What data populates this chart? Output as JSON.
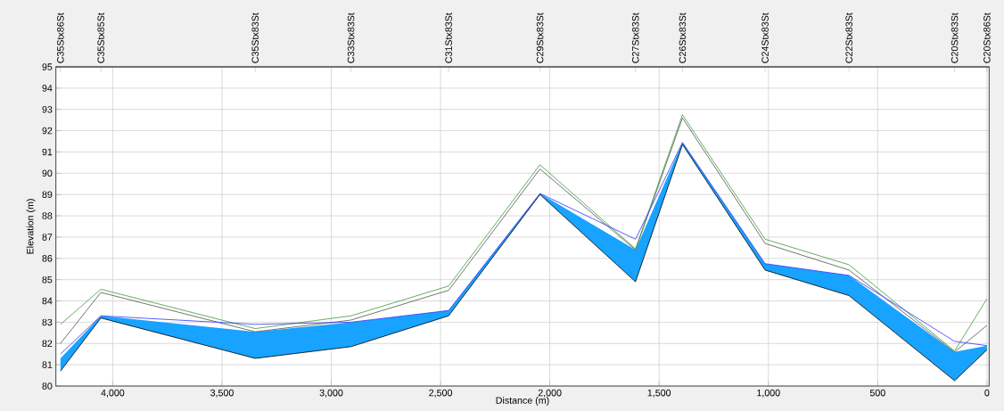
{
  "chart_data": {
    "type": "line",
    "xlabel": "Distance (m)",
    "ylabel": "Elevation (m)",
    "x": [
      4239,
      4054,
      3348,
      2910,
      2463,
      2045,
      1608,
      1393,
      1015,
      631,
      148,
      0
    ],
    "series": [
      {
        "color": "#000000",
        "values": [
          80.7,
          83.2,
          81.3,
          81.85,
          83.3,
          89.0,
          84.9,
          91.35,
          85.45,
          84.25,
          80.25,
          81.7
        ]
      },
      {
        "color": "#505050",
        "values": [
          82.0,
          84.4,
          82.55,
          83.1,
          84.5,
          90.2,
          86.4,
          92.6,
          86.7,
          85.45,
          81.6,
          82.85
        ]
      },
      {
        "color": "#3a9a3a",
        "values": [
          82.9,
          84.55,
          82.7,
          83.3,
          84.7,
          90.4,
          86.45,
          92.75,
          86.9,
          85.7,
          81.65,
          84.1
        ]
      },
      {
        "color": "#3333ff",
        "values": [
          81.5,
          83.3,
          82.9,
          83.0,
          83.55,
          89.05,
          86.9,
          91.45,
          85.75,
          85.2,
          82.1,
          81.9
        ],
        "upper": [
          81.3,
          83.3,
          82.55,
          83.0,
          83.55,
          89.05,
          86.4,
          91.45,
          85.75,
          85.2,
          81.6,
          81.9
        ],
        "lower": [
          80.7,
          83.2,
          81.3,
          81.85,
          83.3,
          89.0,
          84.9,
          91.35,
          85.45,
          84.25,
          80.25,
          81.7
        ]
      }
    ],
    "xlim": [
      4260,
      -10
    ],
    "xticks": [
      {
        "value": 4000,
        "label": "4,000"
      },
      {
        "value": 3500,
        "label": "3,500"
      },
      {
        "value": 3000,
        "label": "3,000"
      },
      {
        "value": 2500,
        "label": "2,500"
      },
      {
        "value": 2000,
        "label": "2,000"
      },
      {
        "value": 1500,
        "label": "1,500"
      },
      {
        "value": 1000,
        "label": "1,000"
      },
      500,
      0
    ],
    "annotations": [
      {
        "text": "C35Stx86St",
        "x": 4239
      },
      {
        "text": "C35Stx85St",
        "x": 4054
      },
      {
        "text": "C35Stx83St",
        "x": 3348
      },
      {
        "text": "C33Stx83St",
        "x": 2910
      },
      {
        "text": "C31Stx83St",
        "x": 2463
      },
      {
        "text": "C29Stx83St",
        "x": 2045
      },
      {
        "text": "C27Stx83St",
        "x": 1608
      },
      {
        "text": "C26Stx83St",
        "x": 1393
      },
      {
        "text": "C24Stx83St",
        "x": 1015
      },
      {
        "text": "C22Stx83St",
        "x": 631
      },
      {
        "text": "C20Stx83St",
        "x": 148
      },
      {
        "text": "C20Stx86St",
        "x": 0
      }
    ],
    "ylim": [
      80,
      95
    ],
    "yticks": [
      80,
      81,
      82,
      83,
      84,
      85,
      86,
      87,
      88,
      89,
      90,
      91,
      92,
      93,
      94,
      95
    ],
    "grid": true,
    "line_style": "solid"
  }
}
